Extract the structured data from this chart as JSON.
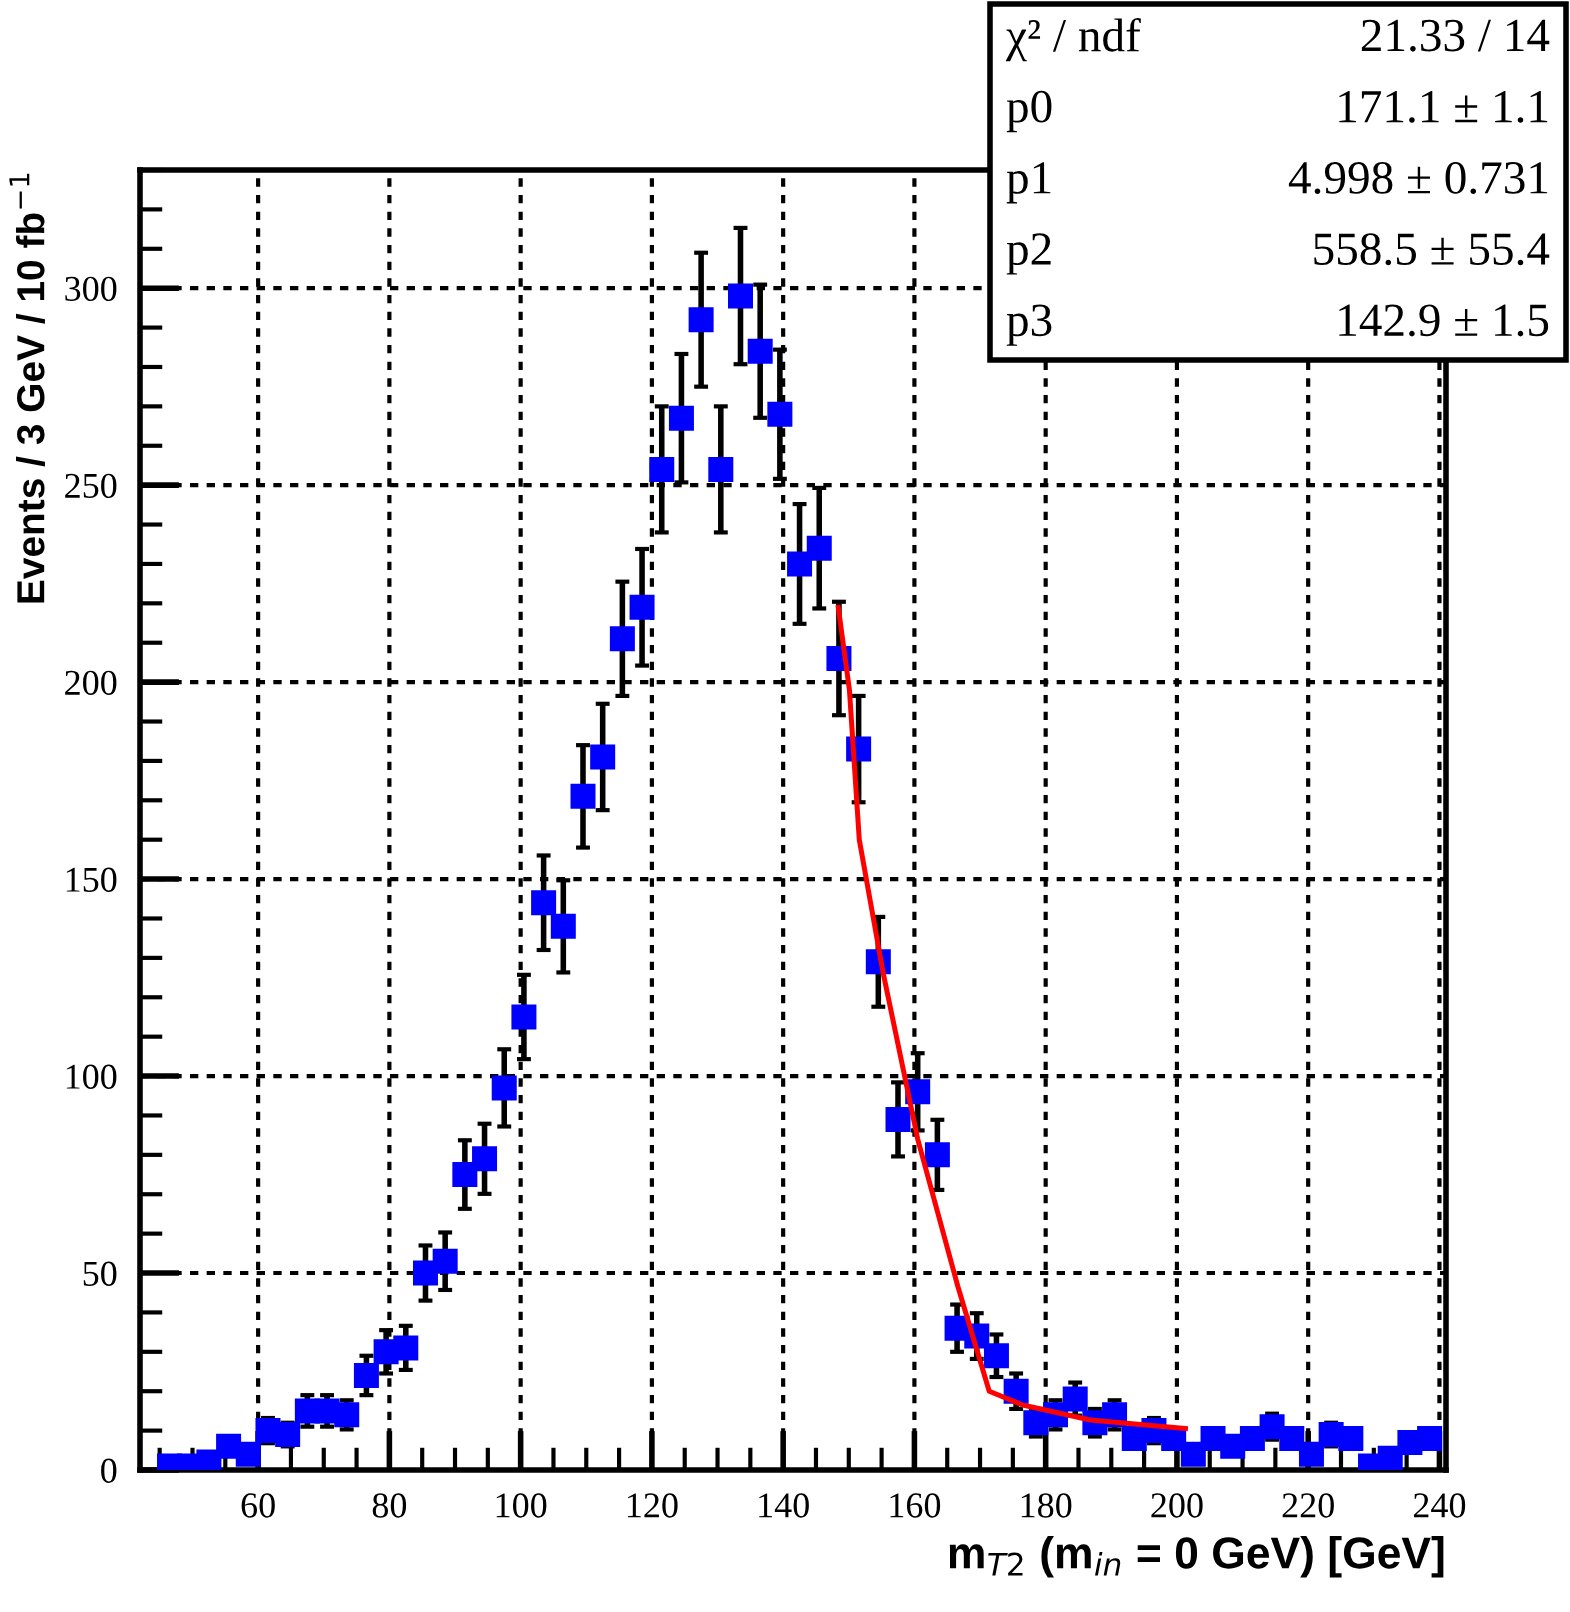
{
  "chart_data": {
    "type": "scatter",
    "xlabel": "m$_{T2}$ (m$_{in}$ = 0 GeV) [GeV]",
    "ylabel": "Events / 3 GeV / 10 fb$^{−1}$",
    "x": [
      46.5,
      49.5,
      52.5,
      55.5,
      58.5,
      61.5,
      64.5,
      67.5,
      70.5,
      73.5,
      76.5,
      79.5,
      82.5,
      85.5,
      88.5,
      91.5,
      94.5,
      97.5,
      100.5,
      103.5,
      106.5,
      109.5,
      112.5,
      115.5,
      118.5,
      121.5,
      124.5,
      127.5,
      130.5,
      133.5,
      136.5,
      139.5,
      142.5,
      145.5,
      148.5,
      151.5,
      154.5,
      157.5,
      160.5,
      163.5,
      166.5,
      169.5,
      172.5,
      175.5,
      178.5,
      181.5,
      184.5,
      187.5,
      190.5,
      193.5,
      196.5,
      199.5,
      202.5,
      205.5,
      208.5,
      211.5,
      214.5,
      217.5,
      220.5,
      223.5,
      226.5,
      229.5,
      232.5,
      235.5,
      238.5
    ],
    "series": [
      {
        "color": "#0000ff",
        "marker": "square",
        "values": [
          1,
          1,
          2,
          6,
          4,
          10,
          9,
          15,
          15,
          14,
          24,
          30,
          31,
          50,
          53,
          75,
          79,
          97,
          115,
          144,
          138,
          171,
          181,
          211,
          219,
          254,
          267,
          292,
          254,
          298,
          284,
          268,
          230,
          234,
          206,
          183,
          129,
          89,
          96,
          80,
          36,
          34,
          29,
          20,
          12,
          14,
          18,
          12,
          14,
          8,
          10,
          8,
          4,
          8,
          6,
          8,
          11,
          8,
          4,
          9,
          8,
          1,
          3,
          7,
          8
        ],
        "errors": [
          null,
          null,
          null,
          null,
          null,
          3.2,
          3,
          4,
          4,
          3.7,
          5,
          5.5,
          5.6,
          7,
          7.3,
          8.7,
          8.9,
          9.8,
          10.7,
          12,
          11.7,
          13,
          13.5,
          14.5,
          14.8,
          16,
          16.3,
          17,
          16,
          17.3,
          16.9,
          16.4,
          15.2,
          15.3,
          14.4,
          13.5,
          11.4,
          9.4,
          9.8,
          8.9,
          6,
          5.8,
          5.4,
          4.5,
          3.5,
          3.7,
          4.2,
          3.5,
          3.7,
          null,
          3.2,
          null,
          null,
          null,
          null,
          null,
          3.3,
          null,
          null,
          3,
          null,
          null,
          null,
          null,
          null
        ]
      },
      {
        "type": "line",
        "color": "#ff0000",
        "line_style": "solid",
        "marker": "none",
        "x": [
          148.4,
          150.1,
          151.6,
          155.2,
          160.5,
          166.6,
          171.4,
          176.5,
          186.8,
          201.3
        ],
        "values": [
          219,
          198,
          160,
          126.5,
          84,
          46.7,
          20,
          16.5,
          12.7,
          10.5
        ]
      }
    ],
    "xlim": [
      42,
      241
    ],
    "ylim": [
      0,
      330
    ],
    "xticks": [
      {
        "value": 45,
        "label": null
      },
      {
        "value": 50,
        "label": null
      },
      {
        "value": 55,
        "label": null
      },
      60,
      {
        "value": 65,
        "label": null
      },
      {
        "value": 70,
        "label": null
      },
      {
        "value": 75,
        "label": null
      },
      80,
      {
        "value": 85,
        "label": null
      },
      {
        "value": 90,
        "label": null
      },
      {
        "value": 95,
        "label": null
      },
      100,
      {
        "value": 105,
        "label": null
      },
      {
        "value": 110,
        "label": null
      },
      {
        "value": 115,
        "label": null
      },
      120,
      {
        "value": 125,
        "label": null
      },
      {
        "value": 130,
        "label": null
      },
      {
        "value": 135,
        "label": null
      },
      140,
      {
        "value": 145,
        "label": null
      },
      {
        "value": 150,
        "label": null
      },
      {
        "value": 155,
        "label": null
      },
      160,
      {
        "value": 165,
        "label": null
      },
      {
        "value": 170,
        "label": null
      },
      {
        "value": 175,
        "label": null
      },
      180,
      {
        "value": 185,
        "label": null
      },
      {
        "value": 190,
        "label": null
      },
      {
        "value": 195,
        "label": null
      },
      200,
      {
        "value": 205,
        "label": null
      },
      {
        "value": 210,
        "label": null
      },
      {
        "value": 215,
        "label": null
      },
      220,
      {
        "value": 225,
        "label": null
      },
      {
        "value": 230,
        "label": null
      },
      {
        "value": 235,
        "label": null
      },
      240
    ],
    "yticks": [
      0,
      {
        "value": 10,
        "label": null
      },
      {
        "value": 20,
        "label": null
      },
      {
        "value": 30,
        "label": null
      },
      {
        "value": 40,
        "label": null
      },
      50,
      {
        "value": 60,
        "label": null
      },
      {
        "value": 70,
        "label": null
      },
      {
        "value": 80,
        "label": null
      },
      {
        "value": 90,
        "label": null
      },
      100,
      {
        "value": 110,
        "label": null
      },
      {
        "value": 120,
        "label": null
      },
      {
        "value": 130,
        "label": null
      },
      {
        "value": 140,
        "label": null
      },
      150,
      {
        "value": 160,
        "label": null
      },
      {
        "value": 170,
        "label": null
      },
      {
        "value": 180,
        "label": null
      },
      {
        "value": 190,
        "label": null
      },
      200,
      {
        "value": 210,
        "label": null
      },
      {
        "value": 220,
        "label": null
      },
      {
        "value": 230,
        "label": null
      },
      {
        "value": 240,
        "label": null
      },
      250,
      {
        "value": 260,
        "label": null
      },
      {
        "value": 270,
        "label": null
      },
      {
        "value": 280,
        "label": null
      },
      {
        "value": 290,
        "label": null
      },
      300,
      {
        "value": 310,
        "label": null
      },
      {
        "value": 320,
        "label": null
      },
      {
        "value": 330,
        "label": null
      }
    ],
    "grid": true,
    "annotations": [
      "χ² / ndf",
      "21.33 / 14",
      "p0",
      "171.1 ± 1.1",
      "p1",
      "4.998 ± 0.731",
      "p2",
      "558.5 ± 55.4",
      "p3",
      "142.9 ± 1.5"
    ]
  }
}
